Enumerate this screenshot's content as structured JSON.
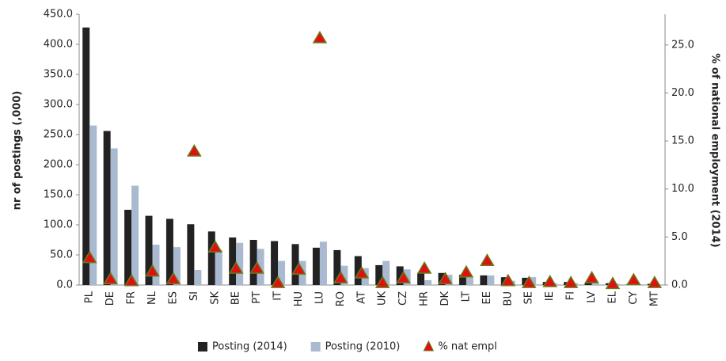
{
  "chart_data": {
    "type": "bar",
    "categories": [
      "PL",
      "DE",
      "FR",
      "NL",
      "ES",
      "SI",
      "SK",
      "BE",
      "PT",
      "IT",
      "HU",
      "LU",
      "RO",
      "AT",
      "UK",
      "CZ",
      "HR",
      "DK",
      "LT",
      "EE",
      "BU",
      "SE",
      "IE",
      "FI",
      "LV",
      "EL",
      "CY",
      "MT"
    ],
    "series": [
      {
        "name": "Posting (2014)",
        "color": "#222222",
        "values": [
          428,
          256,
          125,
          115,
          110,
          101,
          89,
          79,
          75,
          73,
          68,
          62,
          58,
          48,
          33,
          31,
          20,
          20,
          17,
          16,
          13,
          12,
          5,
          5,
          4,
          3,
          2,
          2
        ]
      },
      {
        "name": "Posting (2010)",
        "color": "#a9b9cf",
        "values": [
          265,
          227,
          165,
          67,
          63,
          25,
          58,
          70,
          60,
          40,
          40,
          72,
          32,
          28,
          40,
          26,
          8,
          17,
          12,
          16,
          7,
          13,
          3,
          3,
          3,
          2,
          1,
          1
        ]
      },
      {
        "name": "% nat empl",
        "color": "#e01010",
        "axis": "y2",
        "values": [
          2.8,
          0.6,
          0.4,
          1.4,
          0.6,
          13.9,
          3.9,
          1.7,
          1.7,
          0.2,
          1.6,
          25.7,
          0.7,
          1.2,
          0.2,
          0.7,
          1.7,
          0.6,
          1.3,
          2.5,
          0.4,
          0.2,
          0.3,
          0.2,
          0.7,
          0.1,
          0.5,
          0.2
        ]
      }
    ],
    "ylabel": "nr of postings (,000)",
    "y2label": "% of national  employment (2014)",
    "ylim": [
      0,
      450
    ],
    "yticks": [
      {
        "value": 0,
        "label": "0.0"
      },
      {
        "value": 50,
        "label": "50.0"
      },
      {
        "value": 100,
        "label": "100.0"
      },
      {
        "value": 150,
        "label": "150.0"
      },
      {
        "value": 200,
        "label": "200.0"
      },
      {
        "value": 250,
        "label": "250.0"
      },
      {
        "value": 300,
        "label": "300.0"
      },
      {
        "value": 350,
        "label": "350.0"
      },
      {
        "value": 400,
        "label": "400.0"
      },
      {
        "value": 450,
        "label": "450.0"
      }
    ],
    "y2lim": [
      0,
      28.2
    ],
    "y2ticks": [
      {
        "value": 0,
        "label": "0.0"
      },
      {
        "value": 5,
        "label": "5.0"
      },
      {
        "value": 10,
        "label": "10.0"
      },
      {
        "value": 15,
        "label": "15.0"
      },
      {
        "value": 20,
        "label": "20.0"
      },
      {
        "value": 25,
        "label": "25.0"
      }
    ],
    "grid": false,
    "legend": "bottom"
  }
}
